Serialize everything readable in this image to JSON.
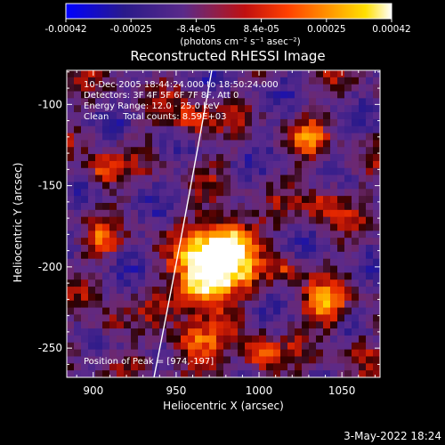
{
  "chart_data": {
    "type": "heatmap",
    "title": "Reconstructed RHESSI Image",
    "xlabel": "Heliocentric X (arcsec)",
    "ylabel": "Heliocentric Y (arcsec)",
    "xlim": [
      884,
      1073
    ],
    "ylim": [
      -268,
      -79
    ],
    "x_ticks": [
      900,
      950,
      1000,
      1050
    ],
    "y_ticks": [
      -100,
      -150,
      -200,
      -250
    ],
    "colorbar": {
      "range": [
        -0.00042,
        0.00042
      ],
      "ticks": [
        "-0.00042",
        "-0.00025",
        "-8.4e-05",
        "8.4e-05",
        "0.00025",
        "0.00042"
      ],
      "unit_label": "(photons cm⁻² s⁻¹ asec⁻²)",
      "colormap": "RHESSI color table (blue → purple → red → orange → yellow → white)"
    },
    "annotations": [
      "10-Dec-2005 18:44:24.000 to 18:50:24.000",
      "Detectors: 3F 4F 5F 6F 7F 8F, Att 0",
      "Energy Range: 12.0 - 25.0 keV",
      "Clean     Total counts: 8.59E+03"
    ],
    "peak_label": "Position of Peak = [974,-197]",
    "peak_position": [
      974,
      -197
    ],
    "limb_curve": true
  },
  "timestamp": "3-May-2022 18:24",
  "colors": {
    "background": "#000000",
    "text": "#ffffff",
    "colormap_stops": [
      "#0000ff",
      "#3a2a8a",
      "#6a3aa0",
      "#c01010",
      "#ff4000",
      "#ff9000",
      "#ffe000",
      "#ffffff"
    ]
  }
}
